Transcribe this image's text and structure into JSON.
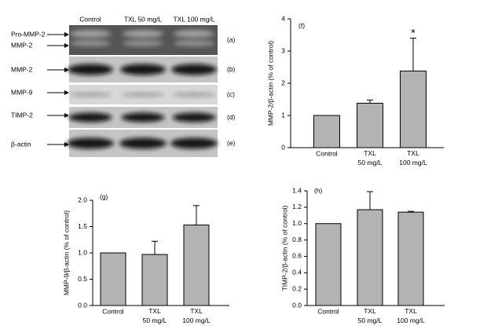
{
  "blot": {
    "lanes": [
      "Control",
      "TXL 50 mg/L",
      "TXL 100 mg/L"
    ],
    "rows": [
      {
        "markers": [
          "Pro-MMP-2",
          "MMP-2"
        ],
        "panel": "(a)"
      },
      {
        "markers": [
          "MMP-2"
        ],
        "panel": "(b)"
      },
      {
        "markers": [
          "MMP-9"
        ],
        "panel": "(c)"
      },
      {
        "markers": [
          "TIMP-2"
        ],
        "panel": "(d)"
      },
      {
        "markers": [
          "β-actin"
        ],
        "panel": "(e)"
      }
    ]
  },
  "chart_data": [
    {
      "type": "bar",
      "panel": "(f)",
      "ylabel": "MMP-2/β-actin (% of control)",
      "categories": [
        "Control",
        "TXL\n50 mg/L",
        "TXL\n100 mg/L"
      ],
      "series": [
        {
          "name": "MMP-2",
          "color": "#b3b3b3",
          "values": [
            1.0,
            1.38,
            2.38
          ],
          "errors": [
            0,
            0.1,
            1.02
          ]
        }
      ],
      "annotations": [
        {
          "text": "*",
          "category": 2
        }
      ],
      "ylim": [
        0,
        4
      ],
      "yticks": [
        0,
        1,
        2,
        3,
        4
      ]
    },
    {
      "type": "bar",
      "panel": "(g)",
      "ylabel": "MMP-9/β-actin (% of control)",
      "categories": [
        "Control",
        "TXL\n50 mg/L",
        "TXL\n100 mg/L"
      ],
      "series": [
        {
          "name": "MMP-9",
          "color": "#b3b3b3",
          "values": [
            1.0,
            0.97,
            1.53
          ],
          "errors": [
            0,
            0.25,
            0.37
          ]
        }
      ],
      "ylim": [
        0,
        2.0
      ],
      "yticks": [
        {
          "value": 0,
          "label": "0.0"
        },
        0.5,
        {
          "value": 1,
          "label": "1.0"
        },
        1.5,
        {
          "value": 2,
          "label": "2.0"
        }
      ]
    },
    {
      "type": "bar",
      "panel": "(h)",
      "ylabel": "TIMP-2/β-actin (% of control)",
      "categories": [
        "Control",
        "TXL\n50 mg/L",
        "TXL\n100 mg/L"
      ],
      "series": [
        {
          "name": "TIMP-2",
          "color": "#b3b3b3",
          "values": [
            1.0,
            1.17,
            1.14
          ],
          "errors": [
            0,
            0.22,
            0.01
          ]
        }
      ],
      "ylim": [
        0,
        1.4
      ],
      "yticks": [
        {
          "value": 0,
          "label": "0.0"
        },
        0.2,
        0.4,
        0.6,
        0.8,
        {
          "value": 1,
          "label": "1.0"
        },
        1.2,
        1.4
      ]
    }
  ]
}
